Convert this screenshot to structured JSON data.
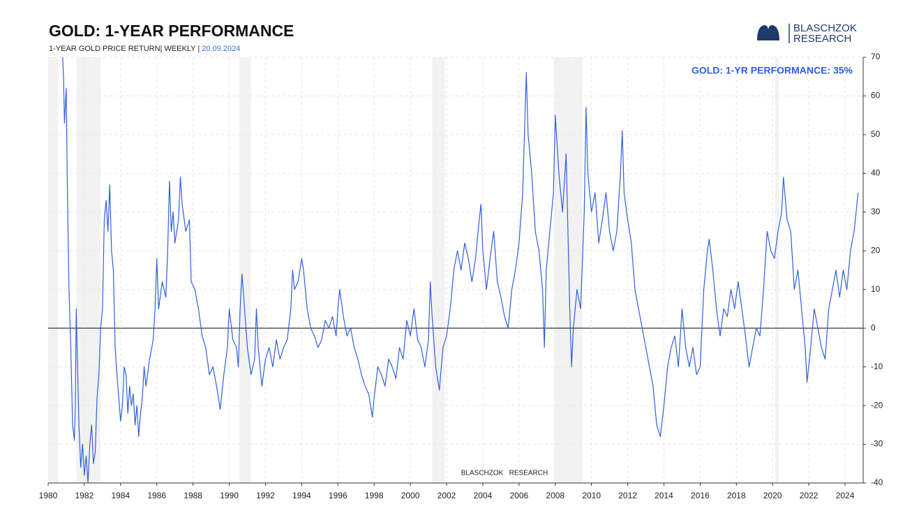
{
  "chart_data": {
    "type": "line",
    "title": "GOLD: 1-YEAR PERFORMANCE",
    "subtitle": "1-YEAR GOLD PRICE RETURN| WEEKLY |",
    "date": "20.09.2024",
    "annotation": "GOLD: 1-YR PERFORMANCE: 35%",
    "watermark": "BLASCHZOK   RESEARCH",
    "logo": {
      "line1": "BLASCHZOK",
      "line2": "RESEARCH"
    },
    "color": "#2f5fe0",
    "recession_color": "#f2f2f2",
    "grid": true,
    "xlim": [
      1980,
      2025
    ],
    "xticks": [
      1980,
      1982,
      1984,
      1986,
      1988,
      1990,
      1992,
      1994,
      1996,
      1998,
      2000,
      2002,
      2004,
      2006,
      2008,
      2010,
      2012,
      2014,
      2016,
      2018,
      2020,
      2022,
      2024
    ],
    "ylim": [
      -40,
      70
    ],
    "yticks": [
      -40,
      -30,
      -20,
      -10,
      0,
      10,
      20,
      30,
      40,
      50,
      60,
      70
    ],
    "recessions": [
      [
        1980.0,
        1980.55
      ],
      [
        1981.55,
        1982.9
      ],
      [
        1990.55,
        1991.2
      ],
      [
        2001.2,
        2001.9
      ],
      [
        2007.95,
        2009.5
      ],
      [
        2020.15,
        2020.35
      ]
    ],
    "x": [
      1980.8,
      1980.85,
      1980.9,
      1981.0,
      1981.05,
      1981.15,
      1981.25,
      1981.35,
      1981.45,
      1981.5,
      1981.55,
      1981.6,
      1981.7,
      1981.8,
      1981.9,
      1982.0,
      1982.1,
      1982.2,
      1982.3,
      1982.4,
      1982.5,
      1982.6,
      1982.7,
      1982.8,
      1982.9,
      1983.0,
      1983.1,
      1983.2,
      1983.3,
      1983.4,
      1983.5,
      1983.6,
      1983.7,
      1983.8,
      1983.9,
      1984.0,
      1984.1,
      1984.2,
      1984.3,
      1984.4,
      1984.5,
      1984.6,
      1984.7,
      1984.8,
      1984.9,
      1985.0,
      1985.1,
      1985.2,
      1985.3,
      1985.4,
      1985.6,
      1985.8,
      1985.9,
      1986.0,
      1986.1,
      1986.3,
      1986.5,
      1986.6,
      1986.7,
      1986.8,
      1986.9,
      1987.0,
      1987.2,
      1987.3,
      1987.4,
      1987.6,
      1987.8,
      1987.9,
      1988.1,
      1988.3,
      1988.5,
      1988.7,
      1988.9,
      1989.1,
      1989.3,
      1989.5,
      1989.7,
      1989.9,
      1990.0,
      1990.2,
      1990.4,
      1990.5,
      1990.6,
      1990.7,
      1990.8,
      1991.0,
      1991.2,
      1991.4,
      1991.5,
      1991.6,
      1991.8,
      1992.0,
      1992.2,
      1992.4,
      1992.6,
      1992.8,
      1993.0,
      1993.2,
      1993.4,
      1993.5,
      1993.6,
      1993.8,
      1994.0,
      1994.1,
      1994.3,
      1994.5,
      1994.7,
      1994.9,
      1995.1,
      1995.3,
      1995.5,
      1995.7,
      1995.9,
      1996.0,
      1996.1,
      1996.3,
      1996.5,
      1996.7,
      1996.9,
      1997.1,
      1997.3,
      1997.5,
      1997.7,
      1997.9,
      1998.0,
      1998.2,
      1998.4,
      1998.6,
      1998.8,
      1999.0,
      1999.2,
      1999.4,
      1999.6,
      1999.8,
      2000.0,
      2000.2,
      2000.4,
      2000.6,
      2000.8,
      2001.0,
      2001.1,
      2001.2,
      2001.4,
      2001.6,
      2001.8,
      2002.0,
      2002.2,
      2002.4,
      2002.6,
      2002.8,
      2003.0,
      2003.2,
      2003.4,
      2003.6,
      2003.8,
      2003.9,
      2004.0,
      2004.2,
      2004.4,
      2004.6,
      2004.8,
      2005.0,
      2005.2,
      2005.4,
      2005.6,
      2005.8,
      2006.0,
      2006.2,
      2006.4,
      2006.5,
      2006.7,
      2006.9,
      2007.1,
      2007.3,
      2007.4,
      2007.5,
      2007.7,
      2007.9,
      2008.0,
      2008.2,
      2008.4,
      2008.6,
      2008.8,
      2008.9,
      2009.0,
      2009.2,
      2009.4,
      2009.6,
      2009.7,
      2009.8,
      2010.0,
      2010.2,
      2010.4,
      2010.6,
      2010.8,
      2011.0,
      2011.2,
      2011.4,
      2011.6,
      2011.7,
      2011.8,
      2012.0,
      2012.2,
      2012.4,
      2012.6,
      2012.8,
      2013.0,
      2013.2,
      2013.4,
      2013.6,
      2013.8,
      2014.0,
      2014.2,
      2014.4,
      2014.6,
      2014.8,
      2015.0,
      2015.2,
      2015.4,
      2015.6,
      2015.8,
      2016.0,
      2016.2,
      2016.4,
      2016.5,
      2016.7,
      2016.9,
      2017.1,
      2017.3,
      2017.5,
      2017.7,
      2017.9,
      2018.1,
      2018.3,
      2018.5,
      2018.7,
      2018.9,
      2019.1,
      2019.3,
      2019.5,
      2019.7,
      2019.9,
      2020.1,
      2020.3,
      2020.5,
      2020.6,
      2020.8,
      2021.0,
      2021.2,
      2021.4,
      2021.6,
      2021.8,
      2021.9,
      2022.1,
      2022.3,
      2022.5,
      2022.7,
      2022.9,
      2023.1,
      2023.3,
      2023.5,
      2023.7,
      2023.9,
      2024.1,
      2024.3,
      2024.5,
      2024.72
    ],
    "values": [
      70,
      65,
      53,
      62,
      40,
      10,
      -5,
      -25,
      -29,
      -20,
      5,
      -5,
      -25,
      -36,
      -30,
      -38,
      -33,
      -40,
      -30,
      -25,
      -35,
      -32,
      -18,
      -12,
      0,
      5,
      28,
      33,
      25,
      37,
      20,
      15,
      -5,
      -12,
      -18,
      -24,
      -20,
      -10,
      -12,
      -22,
      -15,
      -20,
      -17,
      -25,
      -20,
      -28,
      -22,
      -18,
      -10,
      -15,
      -8,
      -3,
      5,
      18,
      5,
      12,
      8,
      20,
      38,
      25,
      30,
      22,
      28,
      39,
      32,
      25,
      28,
      12,
      10,
      5,
      -2,
      -5,
      -12,
      -10,
      -15,
      -21,
      -12,
      -5,
      5,
      -3,
      -5,
      -10,
      5,
      14,
      8,
      -5,
      -12,
      -8,
      5,
      -5,
      -15,
      -8,
      -5,
      -10,
      -3,
      -8,
      -5,
      -3,
      5,
      15,
      10,
      12,
      18,
      15,
      5,
      0,
      -2,
      -5,
      -3,
      2,
      0,
      3,
      -2,
      5,
      10,
      3,
      -2,
      0,
      -5,
      -8,
      -12,
      -15,
      -17,
      -23,
      -18,
      -10,
      -12,
      -15,
      -8,
      -10,
      -13,
      -5,
      -8,
      2,
      -2,
      5,
      -3,
      -5,
      -10,
      -3,
      12,
      3,
      -10,
      -16,
      -5,
      -2,
      5,
      15,
      20,
      15,
      22,
      18,
      12,
      18,
      28,
      32,
      20,
      10,
      18,
      25,
      12,
      8,
      3,
      0,
      10,
      15,
      22,
      35,
      66,
      50,
      40,
      25,
      20,
      10,
      -5,
      15,
      25,
      35,
      55,
      40,
      30,
      45,
      5,
      -10,
      0,
      10,
      5,
      30,
      57,
      40,
      30,
      35,
      22,
      28,
      35,
      25,
      20,
      25,
      40,
      51,
      35,
      28,
      22,
      10,
      5,
      0,
      -5,
      -10,
      -15,
      -25,
      -28,
      -20,
      -10,
      -5,
      -2,
      -10,
      5,
      -5,
      -10,
      -5,
      -12,
      -10,
      10,
      20,
      23,
      15,
      5,
      -2,
      5,
      3,
      10,
      5,
      12,
      5,
      -2,
      -10,
      -5,
      0,
      -2,
      10,
      25,
      20,
      18,
      25,
      30,
      39,
      28,
      25,
      10,
      15,
      5,
      -5,
      -14,
      -5,
      5,
      0,
      -5,
      -8,
      5,
      10,
      15,
      8,
      15,
      10,
      20,
      25,
      35
    ]
  }
}
